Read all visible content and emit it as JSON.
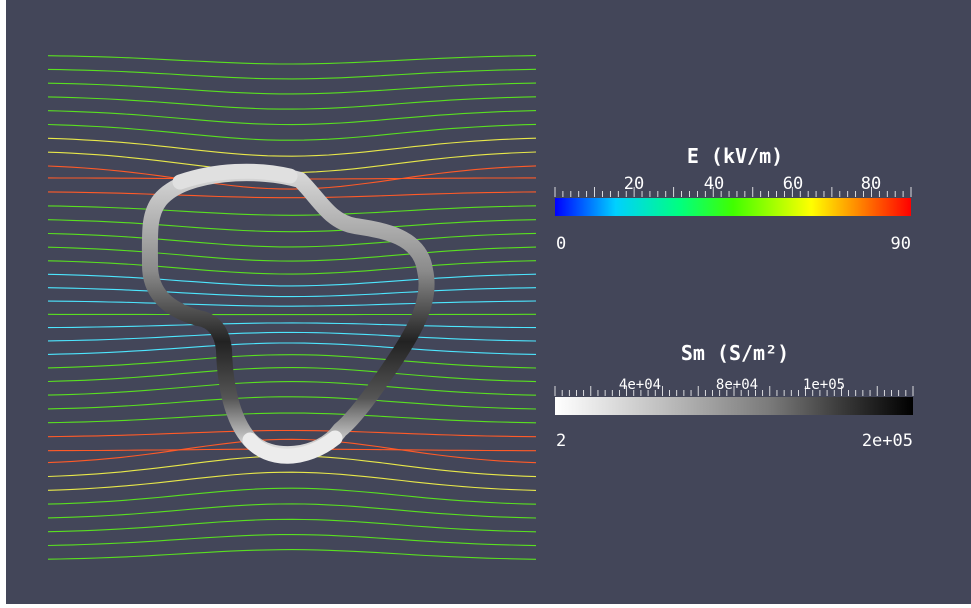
{
  "colors": {
    "background": "#434659",
    "window_frame": "#ffffff",
    "field_line_low": "#4de6ff",
    "field_line_mid": "#59e020",
    "field_line_high": "#ff5a28",
    "membrane_light": "#f2f2f2",
    "membrane_dark": "#101010"
  },
  "legend_e": {
    "title": "E (kV/m)",
    "ticks": [
      "20",
      "40",
      "60",
      "80"
    ],
    "min": "0",
    "max": "90",
    "gradient": [
      "#0000ff",
      "#00d0ff",
      "#00ff80",
      "#40ff00",
      "#ffff00",
      "#ff8000",
      "#ff0000"
    ]
  },
  "legend_sm": {
    "title": "Sm (S/m²)",
    "ticks": [
      "4e+04",
      "8e+04",
      "1e+05"
    ],
    "min": "2",
    "max": "2e+05",
    "gradient": [
      "#ffffff",
      "#bfbfbf",
      "#7a7a7a",
      "#3a3a3a",
      "#000000"
    ]
  },
  "field_lines": {
    "count": 38
  }
}
